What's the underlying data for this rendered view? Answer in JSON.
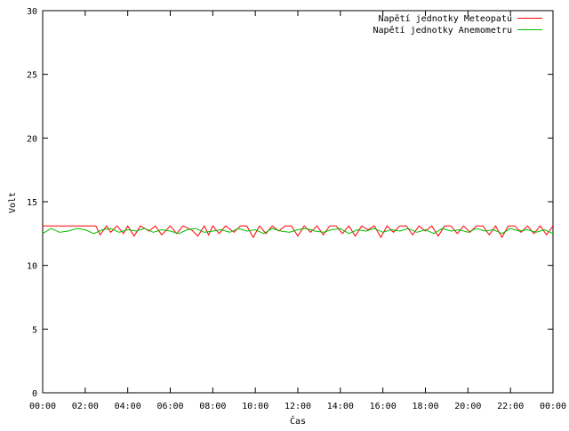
{
  "chart_data": {
    "type": "line",
    "title": "",
    "xlabel": "Čas",
    "ylabel": "Volt",
    "xlim": [
      0,
      24
    ],
    "ylim": [
      0,
      30
    ],
    "x_ticks": [
      "00:00",
      "02:00",
      "04:00",
      "06:00",
      "08:00",
      "10:00",
      "12:00",
      "14:00",
      "16:00",
      "18:00",
      "20:00",
      "22:00",
      "00:00"
    ],
    "y_ticks": [
      "0",
      "5",
      "10",
      "15",
      "20",
      "25",
      "30"
    ],
    "grid": false,
    "legend_position": "top-right",
    "series": [
      {
        "name": "Napětí jednotky Meteopatu",
        "color": "#ff0000",
        "x": [
          0,
          0.5,
          1,
          1.5,
          2,
          2.5,
          2.7,
          3,
          3.2,
          3.5,
          3.8,
          4,
          4.3,
          4.6,
          5,
          5.3,
          5.6,
          6,
          6.3,
          6.6,
          7,
          7.3,
          7.6,
          7.8,
          8,
          8.3,
          8.6,
          9,
          9.3,
          9.6,
          9.9,
          10.2,
          10.5,
          10.8,
          11.1,
          11.4,
          11.7,
          12,
          12.3,
          12.6,
          12.9,
          13.2,
          13.5,
          13.8,
          14.1,
          14.4,
          14.7,
          15,
          15.3,
          15.6,
          15.9,
          16.2,
          16.5,
          16.8,
          17.1,
          17.4,
          17.7,
          18,
          18.3,
          18.6,
          18.9,
          19.2,
          19.5,
          19.8,
          20.1,
          20.4,
          20.7,
          21,
          21.3,
          21.6,
          21.9,
          22.2,
          22.5,
          22.8,
          23.1,
          23.4,
          23.7,
          24
        ],
        "y": [
          13.1,
          13.1,
          13.1,
          13.1,
          13.1,
          13.1,
          12.4,
          13.1,
          12.6,
          13.1,
          12.5,
          13.1,
          12.3,
          13.1,
          12.7,
          13.1,
          12.4,
          13.1,
          12.5,
          13.1,
          12.8,
          12.3,
          13.1,
          12.4,
          13.1,
          12.5,
          13.1,
          12.6,
          13.1,
          13.1,
          12.2,
          13.1,
          12.5,
          13.1,
          12.7,
          13.1,
          13.1,
          12.3,
          13.1,
          12.6,
          13.1,
          12.4,
          13.1,
          13.1,
          12.5,
          13.1,
          12.3,
          13.1,
          12.8,
          13.1,
          12.2,
          13.1,
          12.6,
          13.1,
          13.1,
          12.4,
          13.1,
          12.7,
          13.1,
          12.3,
          13.1,
          13.1,
          12.5,
          13.1,
          12.6,
          13.1,
          13.1,
          12.4,
          13.1,
          12.2,
          13.1,
          13.1,
          12.6,
          13.1,
          12.5,
          13.1,
          12.4,
          13.1
        ]
      },
      {
        "name": "Napětí jednotky Anemometru",
        "color": "#00c000",
        "x": [
          0,
          0.4,
          0.8,
          1.2,
          1.6,
          2,
          2.4,
          2.8,
          3.2,
          3.6,
          4,
          4.4,
          4.8,
          5.2,
          5.6,
          6,
          6.4,
          6.8,
          7.2,
          7.6,
          8,
          8.4,
          8.8,
          9.2,
          9.6,
          10,
          10.4,
          10.8,
          11.2,
          11.6,
          12,
          12.4,
          12.8,
          13.2,
          13.6,
          14,
          14.4,
          14.8,
          15.2,
          15.6,
          16,
          16.4,
          16.8,
          17.2,
          17.6,
          18,
          18.4,
          18.8,
          19.2,
          19.6,
          20,
          20.4,
          20.8,
          21.2,
          21.6,
          22,
          22.4,
          22.8,
          23.2,
          23.6,
          24
        ],
        "y": [
          12.5,
          12.9,
          12.6,
          12.7,
          12.9,
          12.8,
          12.5,
          12.8,
          12.9,
          12.6,
          12.8,
          12.7,
          12.9,
          12.6,
          12.8,
          12.7,
          12.5,
          12.8,
          12.9,
          12.6,
          12.7,
          12.8,
          12.6,
          12.9,
          12.7,
          12.8,
          12.5,
          12.9,
          12.7,
          12.6,
          12.8,
          12.9,
          12.7,
          12.6,
          12.8,
          12.9,
          12.5,
          12.8,
          12.7,
          12.9,
          12.6,
          12.8,
          12.7,
          12.9,
          12.6,
          12.8,
          12.5,
          12.9,
          12.7,
          12.8,
          12.6,
          12.9,
          12.7,
          12.8,
          12.5,
          12.9,
          12.7,
          12.8,
          12.6,
          12.8,
          12.5
        ]
      }
    ]
  }
}
